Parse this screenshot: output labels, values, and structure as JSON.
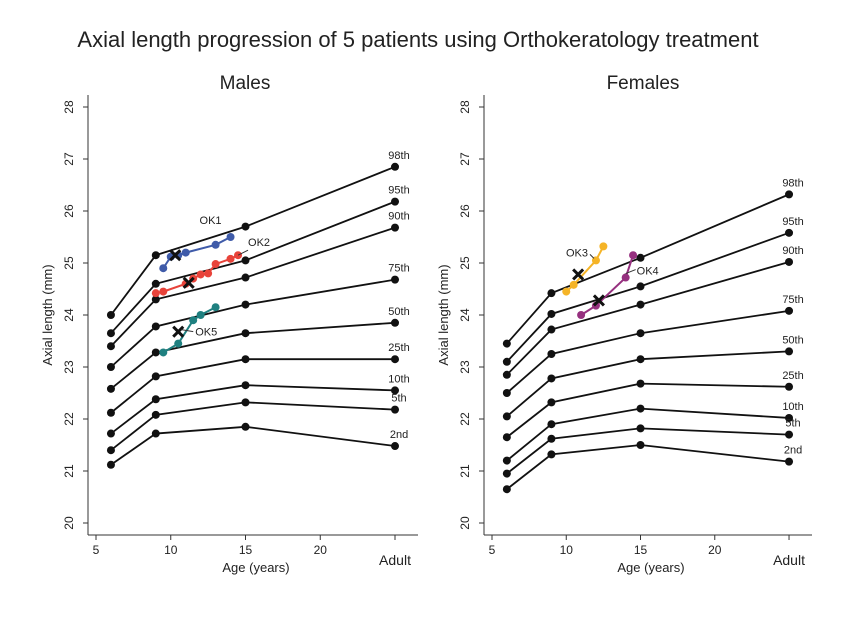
{
  "chart_data": {
    "type": "line",
    "title": "Axial length progression of 5 patients using Orthokeratology treatment",
    "ylabel": "Axial length (mm)",
    "xlabel": "Age (years)",
    "ylim": [
      20,
      28
    ],
    "yticks": [
      20,
      21,
      22,
      23,
      24,
      25,
      26,
      27,
      28
    ],
    "xticks": [
      5,
      10,
      15,
      20
    ],
    "adult_label": "Adult",
    "adult_x": 25,
    "xlim": [
      5,
      25
    ],
    "percentile_ages": [
      6,
      9,
      15,
      25
    ],
    "panels": [
      {
        "title": "Males",
        "percentiles": [
          {
            "name": "98th",
            "values": [
              24.0,
              25.15,
              25.7,
              26.85
            ]
          },
          {
            "name": "95th",
            "values": [
              23.65,
              24.6,
              25.05,
              26.18
            ]
          },
          {
            "name": "90th",
            "values": [
              23.4,
              24.3,
              24.72,
              25.68
            ]
          },
          {
            "name": "75th",
            "values": [
              23.0,
              23.78,
              24.2,
              24.68
            ]
          },
          {
            "name": "50th",
            "values": [
              22.58,
              23.28,
              23.65,
              23.85
            ]
          },
          {
            "name": "25th",
            "values": [
              22.12,
              22.82,
              23.15,
              23.15
            ]
          },
          {
            "name": "10th",
            "values": [
              21.72,
              22.38,
              22.65,
              22.55
            ]
          },
          {
            "name": "5th",
            "values": [
              21.4,
              22.08,
              22.32,
              22.18
            ]
          },
          {
            "name": "2nd",
            "values": [
              21.12,
              21.72,
              21.85,
              21.48
            ]
          }
        ],
        "patients": [
          {
            "name": "OK1",
            "color": "#3f5ba9",
            "x": [
              9.5,
              10.0,
              10.5,
              11.0,
              13.0,
              14.0
            ],
            "y": [
              24.9,
              25.12,
              25.15,
              25.2,
              25.35,
              25.5
            ],
            "start": [
              10.3,
              25.15
            ]
          },
          {
            "name": "OK2",
            "color": "#e8433a",
            "x": [
              9.0,
              9.5,
              11.0,
              11.5,
              12.0,
              12.5,
              13.0,
              14.0,
              14.5
            ],
            "y": [
              24.42,
              24.45,
              24.6,
              24.7,
              24.78,
              24.8,
              24.98,
              25.08,
              25.15
            ],
            "start": [
              11.2,
              24.62
            ]
          },
          {
            "name": "OK5",
            "color": "#1f8080",
            "x": [
              9.5,
              10.5,
              11.5,
              12.0,
              13.0
            ],
            "y": [
              23.28,
              23.45,
              23.9,
              24.0,
              24.15
            ],
            "start": [
              10.5,
              23.68
            ]
          }
        ]
      },
      {
        "title": "Females",
        "percentiles": [
          {
            "name": "98th",
            "values": [
              23.45,
              24.42,
              25.1,
              26.32
            ]
          },
          {
            "name": "95th",
            "values": [
              23.1,
              24.02,
              24.55,
              25.58
            ]
          },
          {
            "name": "90th",
            "values": [
              22.85,
              23.72,
              24.2,
              25.02
            ]
          },
          {
            "name": "75th",
            "values": [
              22.5,
              23.25,
              23.65,
              24.08
            ]
          },
          {
            "name": "50th",
            "values": [
              22.05,
              22.78,
              23.15,
              23.3
            ]
          },
          {
            "name": "25th",
            "values": [
              21.65,
              22.32,
              22.68,
              22.62
            ]
          },
          {
            "name": "10th",
            "values": [
              21.2,
              21.9,
              22.2,
              22.02
            ]
          },
          {
            "name": "5th",
            "values": [
              20.95,
              21.62,
              21.82,
              21.7
            ]
          },
          {
            "name": "2nd",
            "values": [
              20.65,
              21.32,
              21.5,
              21.18
            ]
          }
        ],
        "patients": [
          {
            "name": "OK3",
            "color": "#f5b427",
            "x": [
              10.0,
              10.5,
              12.0,
              12.5
            ],
            "y": [
              24.45,
              24.58,
              25.05,
              25.32
            ],
            "start": [
              10.8,
              24.78
            ]
          },
          {
            "name": "OK4",
            "color": "#96307f",
            "x": [
              11.0,
              12.0,
              14.0,
              14.5
            ],
            "y": [
              24.0,
              24.18,
              24.72,
              25.15
            ],
            "start": [
              12.2,
              24.28
            ]
          }
        ]
      }
    ]
  }
}
